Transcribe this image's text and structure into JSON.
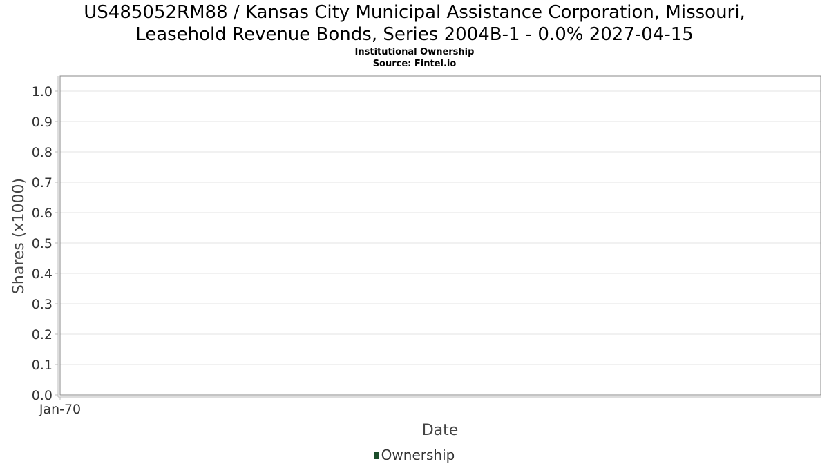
{
  "chart_data": {
    "type": "area",
    "title": "US485052RM88 / Kansas City Municipal Assistance Corporation, Missouri, Leasehold Revenue Bonds, Series 2004B-1 - 0.0% 2027-04-15",
    "title_lines": [
      "US485052RM88 / Kansas City Municipal Assistance Corporation, Missouri,",
      "Leasehold Revenue Bonds, Series 2004B-1 - 0.0% 2027-04-15"
    ],
    "subtitle": "Institutional Ownership",
    "source": "Source: Fintel.io",
    "xlabel": "Date",
    "ylabel": "Shares (x1000)",
    "x_tick_labels": [
      "Jan-70"
    ],
    "ylim": [
      0,
      1.0
    ],
    "y_ticks": [
      0.0,
      0.1,
      0.2,
      0.3,
      0.4,
      0.5,
      0.6,
      0.7,
      0.8,
      0.9,
      1.0
    ],
    "grid": true,
    "legend_position": "bottom-center",
    "series": [
      {
        "name": "Ownership",
        "color": "#1b4d2b",
        "x": [],
        "values": []
      }
    ]
  }
}
